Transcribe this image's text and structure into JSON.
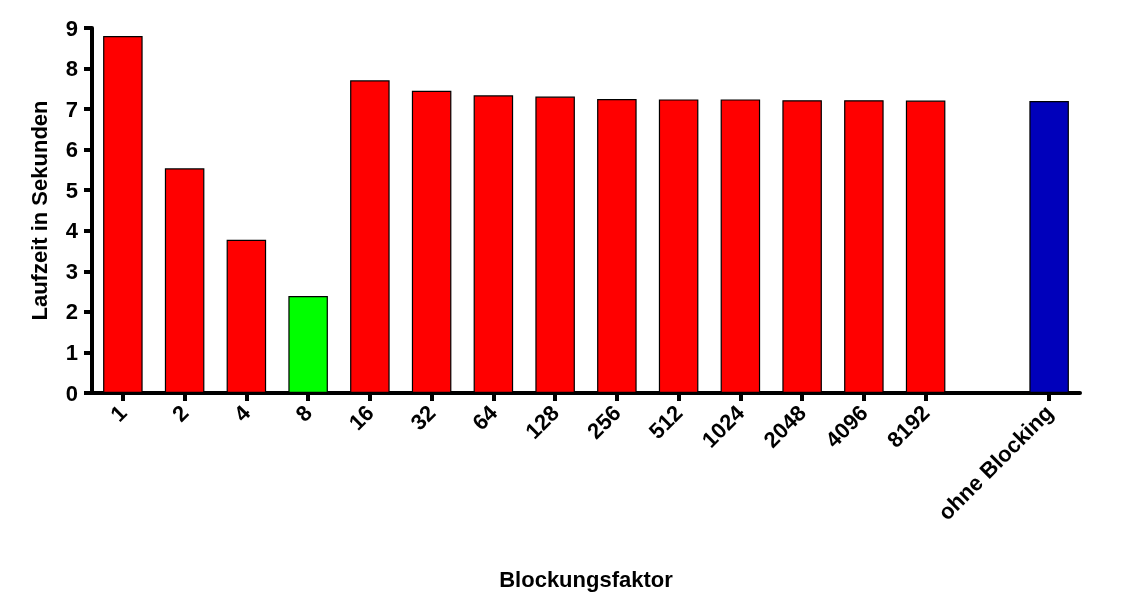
{
  "chart_data": {
    "type": "bar",
    "xlabel": "Blockungsfaktor",
    "ylabel": "Laufzeit in Sekunden",
    "categories": [
      "1",
      "2",
      "4",
      "8",
      "16",
      "32",
      "64",
      "128",
      "256",
      "512",
      "1024",
      "2048",
      "4096",
      "8192",
      null,
      "ohne Blocking"
    ],
    "values": [
      8.8,
      5.54,
      3.78,
      2.39,
      7.71,
      7.45,
      7.34,
      7.31,
      7.25,
      7.24,
      7.24,
      7.22,
      7.22,
      7.21,
      null,
      7.2
    ],
    "colors": [
      "#ff0000",
      "#ff0000",
      "#ff0000",
      "#00ff00",
      "#ff0000",
      "#ff0000",
      "#ff0000",
      "#ff0000",
      "#ff0000",
      "#ff0000",
      "#ff0000",
      "#ff0000",
      "#ff0000",
      "#ff0000",
      null,
      "#0000bb"
    ],
    "ylim": [
      0,
      9
    ],
    "yticks": [
      0,
      1,
      2,
      3,
      4,
      5,
      6,
      7,
      8,
      9
    ],
    "grid": false
  }
}
